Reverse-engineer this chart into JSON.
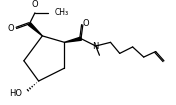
{
  "background": "#ffffff",
  "line_color": "#000000",
  "bond_lw": 0.9,
  "figsize": [
    1.76,
    1.05
  ],
  "dpi": 100,
  "text_color": "#000000",
  "xlim": [
    0,
    176
  ],
  "ylim": [
    0,
    105
  ]
}
